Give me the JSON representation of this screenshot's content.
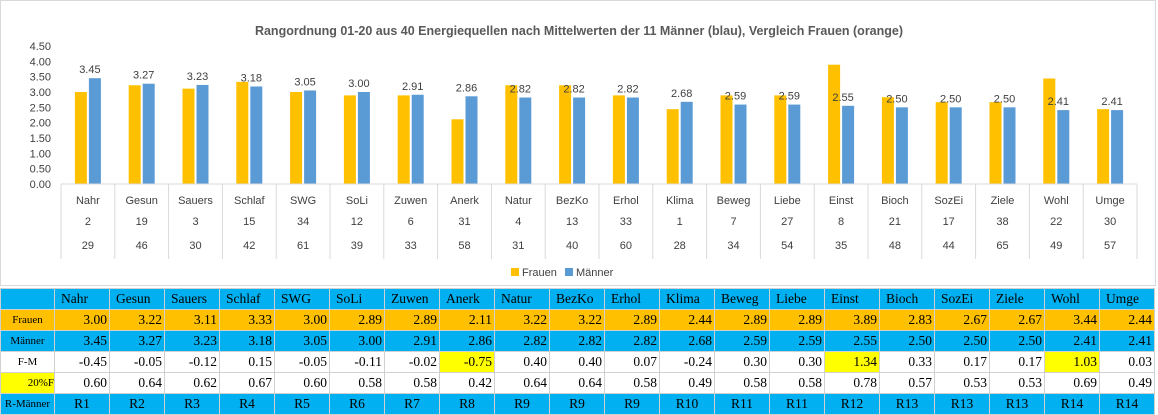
{
  "chart_data": {
    "type": "bar",
    "title": "Rangordnung 01-20 aus 40 Energiequellen nach Mittelwerten der 11 Männer (blau), Vergleich Frauen (orange)",
    "categories": [
      "Nahr",
      "Gesun",
      "Sauers",
      "Schlaf",
      "SWG",
      "SoLi",
      "Zuwen",
      "Anerk",
      "Natur",
      "BezKo",
      "Erhol",
      "Klima",
      "Beweg",
      "Liebe",
      "Einst",
      "Bioch",
      "SozEi",
      "Ziele",
      "Wohl",
      "Umge"
    ],
    "category_row2": [
      "2",
      "19",
      "3",
      "15",
      "34",
      "12",
      "6",
      "31",
      "4",
      "13",
      "33",
      "1",
      "7",
      "27",
      "8",
      "21",
      "17",
      "38",
      "22",
      "30"
    ],
    "category_row3": [
      "29",
      "46",
      "30",
      "42",
      "61",
      "39",
      "33",
      "58",
      "31",
      "40",
      "60",
      "28",
      "34",
      "54",
      "35",
      "48",
      "44",
      "65",
      "49",
      "57"
    ],
    "series": [
      {
        "name": "Frauen",
        "color": "#ffc000",
        "values": [
          3.0,
          3.22,
          3.11,
          3.33,
          3.0,
          2.89,
          2.89,
          2.11,
          3.22,
          3.22,
          2.89,
          2.44,
          2.89,
          2.89,
          3.89,
          2.83,
          2.67,
          2.67,
          3.44,
          2.44
        ]
      },
      {
        "name": "Männer",
        "color": "#5b9bd5",
        "values": [
          3.45,
          3.27,
          3.23,
          3.18,
          3.05,
          3.0,
          2.91,
          2.86,
          2.82,
          2.82,
          2.82,
          2.68,
          2.59,
          2.59,
          2.55,
          2.5,
          2.5,
          2.5,
          2.41,
          2.41
        ]
      }
    ],
    "data_labels": [
      "3.45",
      "3.27",
      "3.23",
      "3.18",
      "3.05",
      "3.00",
      "2.91",
      "2.86",
      "2.82",
      "2.82",
      "2.82",
      "2.68",
      "2.59",
      "2.59",
      "2.55",
      "2.50",
      "2.50",
      "2.50",
      "2.41",
      "2.41"
    ],
    "yticks": [
      "4.50",
      "4.00",
      "3.50",
      "3.00",
      "2.50",
      "2.00",
      "1.50",
      "1.00",
      "0.50",
      "0.00"
    ],
    "ylim": [
      0,
      4.5
    ],
    "grid": false,
    "legend": "bottom-center"
  },
  "table": {
    "headers": [
      "Nahr",
      "Gesun",
      "Sauers",
      "Schlaf",
      "SWG",
      "SoLi",
      "Zuwen",
      "Anerk",
      "Natur",
      "BezKo",
      "Erhol",
      "Klima",
      "Beweg",
      "Liebe",
      "Einst",
      "Bioch",
      "SozEi",
      "Ziele",
      "Wohl",
      "Umge"
    ],
    "rows": [
      {
        "label": "Frauen",
        "values": [
          "3.00",
          "3.22",
          "3.11",
          "3.33",
          "3.00",
          "2.89",
          "2.89",
          "2.11",
          "3.22",
          "3.22",
          "2.89",
          "2.44",
          "2.89",
          "2.89",
          "3.89",
          "2.83",
          "2.67",
          "2.67",
          "3.44",
          "2.44"
        ]
      },
      {
        "label": "Männer",
        "values": [
          "3.45",
          "3.27",
          "3.23",
          "3.18",
          "3.05",
          "3.00",
          "2.91",
          "2.86",
          "2.82",
          "2.82",
          "2.82",
          "2.68",
          "2.59",
          "2.59",
          "2.55",
          "2.50",
          "2.50",
          "2.50",
          "2.41",
          "2.41"
        ]
      },
      {
        "label": "F-M",
        "values": [
          "-0.45",
          "-0.05",
          "-0.12",
          "0.15",
          "-0.05",
          "-0.11",
          "-0.02",
          "-0.75",
          "0.40",
          "0.40",
          "0.07",
          "-0.24",
          "0.30",
          "0.30",
          "1.34",
          "0.33",
          "0.17",
          "0.17",
          "1.03",
          "0.03"
        ],
        "highlight": [
          7,
          14,
          18
        ]
      },
      {
        "label": "20%F",
        "values": [
          "0.60",
          "0.64",
          "0.62",
          "0.67",
          "0.60",
          "0.58",
          "0.58",
          "0.42",
          "0.64",
          "0.64",
          "0.58",
          "0.49",
          "0.58",
          "0.58",
          "0.78",
          "0.57",
          "0.53",
          "0.53",
          "0.69",
          "0.49"
        ]
      },
      {
        "label": "R-Männer",
        "values": [
          "R1",
          "R2",
          "R3",
          "R4",
          "R5",
          "R6",
          "R7",
          "R8",
          "R9",
          "R9",
          "R9",
          "R10",
          "R11",
          "R11",
          "R12",
          "R13",
          "R13",
          "R13",
          "R14",
          "R14"
        ]
      }
    ]
  }
}
